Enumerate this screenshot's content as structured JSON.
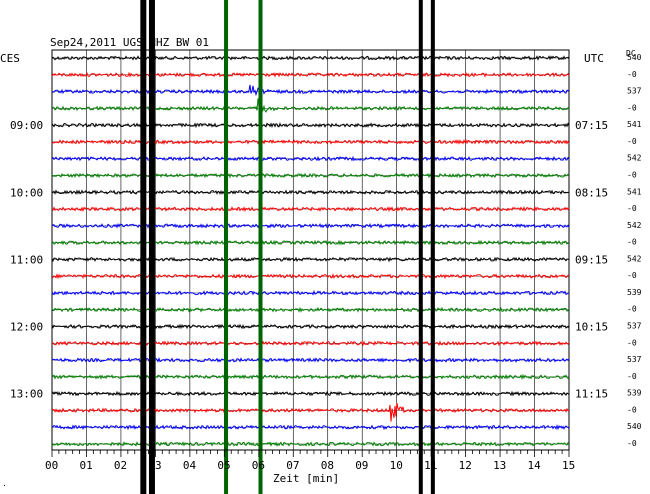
{
  "chart_data": {
    "type": "line",
    "title": "Sep24,2011 UGS HHZ BW 01",
    "left_timezone": "CES",
    "right_timezone": "UTC",
    "dc_header": "DC",
    "xlabel": "Zeit [min]",
    "x_ticks": [
      "00",
      "01",
      "02",
      "03",
      "04",
      "05",
      "06",
      "07",
      "08",
      "09",
      "10",
      "11",
      "12",
      "13",
      "14",
      "15"
    ],
    "xlim": [
      0,
      15
    ],
    "line_colors": [
      "#000000",
      "#ff0000",
      "#0000ff",
      "#008000"
    ],
    "left_hour_labels": [
      "09:00",
      "10:00",
      "11:00",
      "12:00",
      "13:00"
    ],
    "right_hour_labels": [
      "07:15",
      "08:15",
      "09:15",
      "10:15",
      "11:15"
    ],
    "dc_values": [
      "540",
      "-0",
      "537",
      "-0",
      "541",
      "-0",
      "542",
      "-0",
      "541",
      "-0",
      "542",
      "-0",
      "542",
      "-0",
      "539",
      "-0",
      "537",
      "-0",
      "537",
      "-0",
      "539",
      "-0",
      "540",
      "-0"
    ],
    "trace_count": 24,
    "vertical_markers": [
      {
        "minute": 2.65,
        "color": "#000000",
        "weight": "heavy"
      },
      {
        "minute": 2.9,
        "color": "#000000",
        "weight": "heavy"
      },
      {
        "minute": 5.05,
        "color": "#006400",
        "weight": "medium"
      },
      {
        "minute": 6.05,
        "color": "#006400",
        "weight": "medium"
      },
      {
        "minute": 10.7,
        "color": "#000000",
        "weight": "medium"
      },
      {
        "minute": 11.05,
        "color": "#000000",
        "weight": "medium"
      }
    ],
    "events": [
      {
        "trace": 21,
        "minute": 9.85,
        "color": "#ff0000",
        "amplitude": "large"
      },
      {
        "trace": 3,
        "minute": 6.0,
        "color": "#008000",
        "amplitude": "medium"
      },
      {
        "trace": 2,
        "minute": 5.8,
        "color": "#0000ff",
        "amplitude": "small"
      }
    ],
    "grid": true
  }
}
